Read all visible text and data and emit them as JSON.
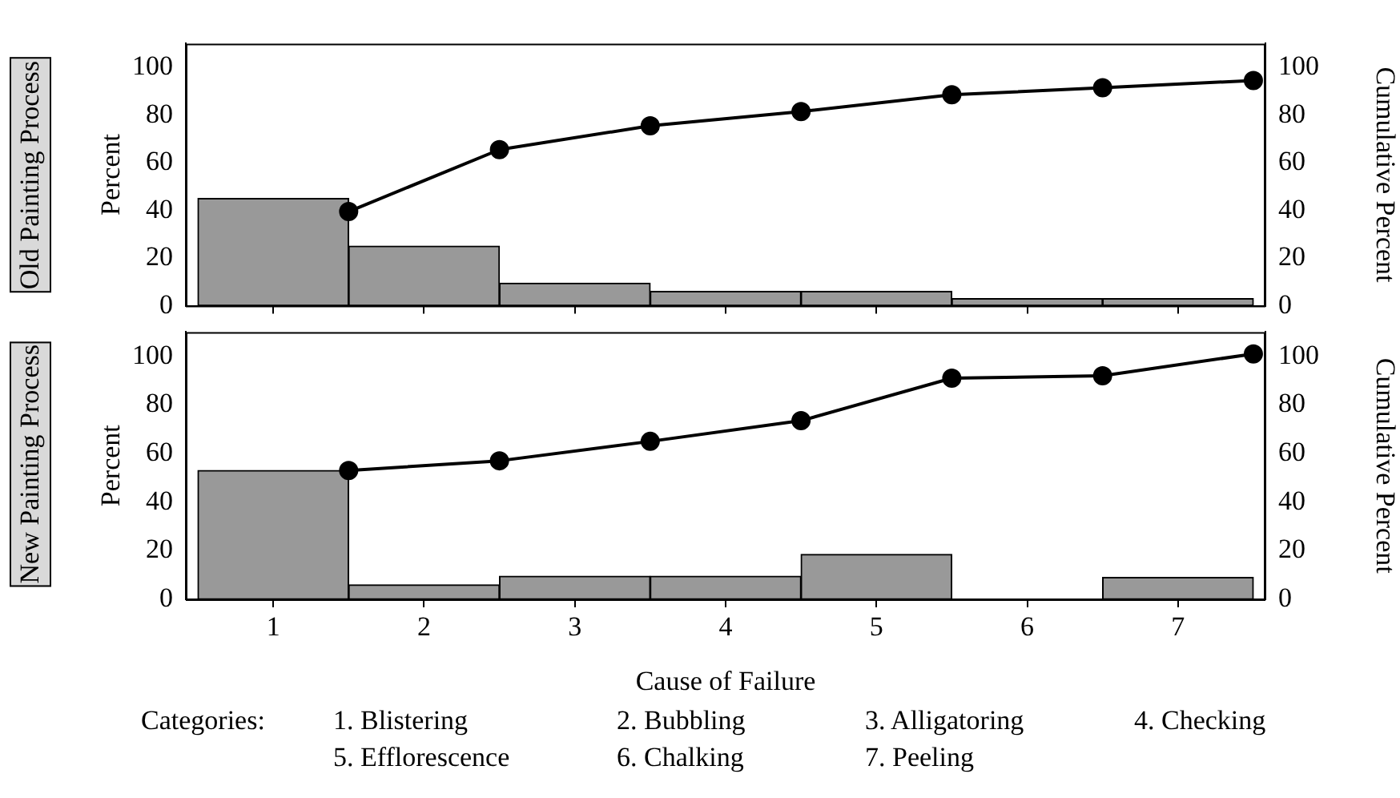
{
  "chart_data": [
    {
      "type": "bar",
      "title": "Old Painting Process",
      "ylabel": "Percent",
      "y2label": "Cumulative Percent",
      "x": [
        1,
        2,
        3,
        4,
        5,
        6,
        7
      ],
      "xlim": [
        0.42,
        7.58
      ],
      "xticks": [
        1,
        2,
        3,
        4,
        5,
        6,
        7
      ],
      "ylim": [
        0,
        110
      ],
      "yticks": [
        0,
        20,
        40,
        60,
        80,
        100
      ],
      "y2lim": [
        0,
        110
      ],
      "y2ticks": [
        0,
        20,
        40,
        60,
        80,
        100
      ],
      "tick_labels": "y",
      "grid": false,
      "marker": "circle",
      "series": [
        {
          "color": "#999999",
          "values": [
            45,
            25,
            9.5,
            6,
            6,
            3,
            3
          ]
        },
        {
          "type": "line",
          "axis": "y2",
          "color": "#000000",
          "x": [
            1.5,
            2.5,
            3.5,
            4.5,
            5.5,
            6.5,
            7.5
          ],
          "values": [
            39.5,
            65.5,
            75.5,
            81.5,
            88.5,
            91.5,
            94.5
          ]
        }
      ]
    },
    {
      "type": "bar",
      "title": "New Painting Process",
      "ylabel": "Percent",
      "y2label": "Cumulative Percent",
      "xlabel": "Cause of Failure",
      "x": [
        1,
        2,
        3,
        4,
        5,
        6,
        7
      ],
      "xlim": [
        0.42,
        7.58
      ],
      "xticks": [
        1,
        2,
        3,
        4,
        5,
        6,
        7
      ],
      "ylim": [
        0,
        110
      ],
      "yticks": [
        0,
        20,
        40,
        60,
        80,
        100
      ],
      "y2lim": [
        0,
        110
      ],
      "y2ticks": [
        0,
        20,
        40,
        60,
        80,
        100
      ],
      "grid": false,
      "marker": "circle",
      "annotations": [
        "Categories:",
        "1. Blistering",
        "2. Bubbling",
        "3. Alligatoring",
        "4. Checking",
        "5. Efflorescence",
        "6. Chalking",
        "7. Peeling"
      ],
      "series": [
        {
          "color": "#999999",
          "values": [
            53,
            6,
            9.5,
            9.5,
            18.5,
            0,
            9
          ]
        },
        {
          "type": "line",
          "axis": "y2",
          "color": "#000000",
          "x": [
            1.5,
            2.5,
            3.5,
            4.5,
            5.5,
            6.5,
            7.5
          ],
          "values": [
            53,
            57,
            65,
            73.5,
            91,
            92,
            101
          ]
        }
      ]
    }
  ]
}
